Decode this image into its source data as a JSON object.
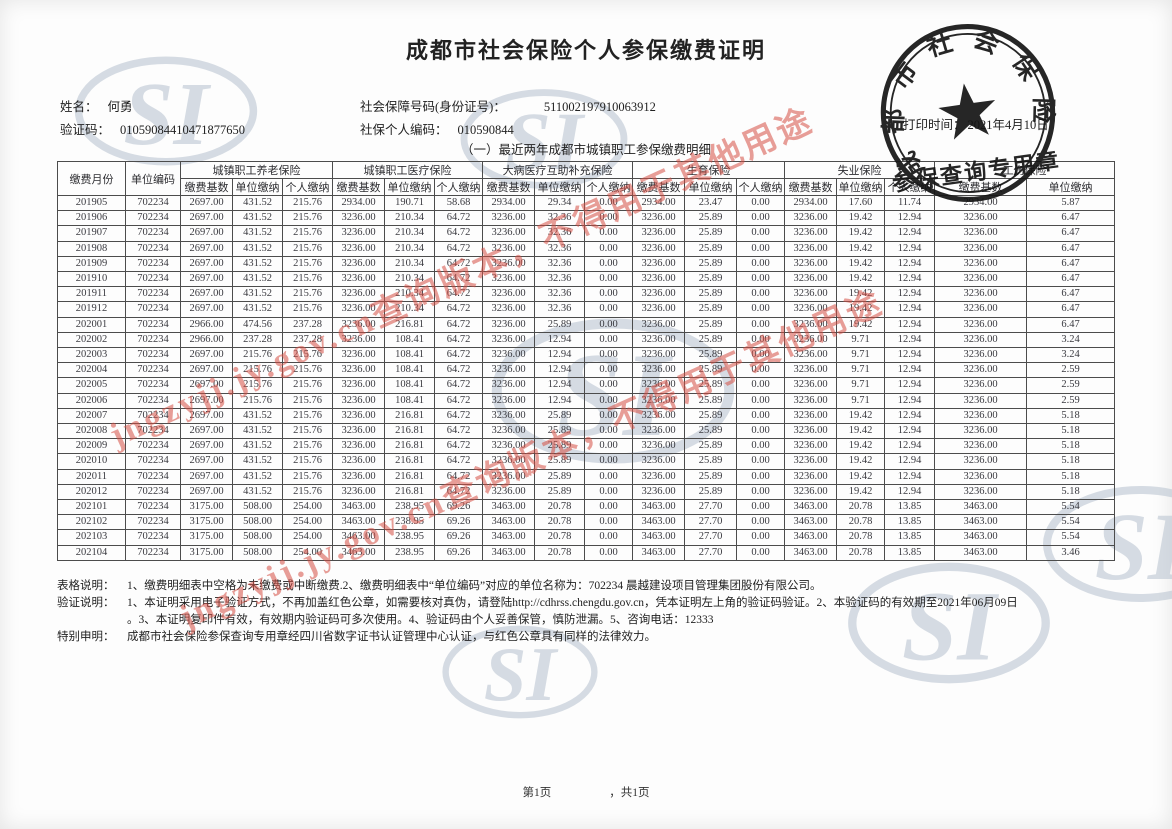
{
  "colors": {
    "watermark_red": "rgba(214,78,68,0.55)",
    "logo_gray": "#bcc6d2",
    "stamp_ink": "#141414"
  },
  "title": "成都市社会保险个人参保缴费证明",
  "info": {
    "name_label": "姓名：",
    "name_value": "何勇",
    "ssn_label": "社会保障号码(身份证号)：",
    "ssn_value": "511002197910063912",
    "verify_label": "验证码：",
    "verify_value": "01059084410471877650",
    "personal_code_label": "社保个人编码：",
    "personal_code_value": "010590844",
    "print_time_label": "打印时间：",
    "print_time_value": "2021年4月10日"
  },
  "subtitle": "（一）最近两年成都市城镇职工参保缴费明细",
  "table": {
    "col1": "缴费月份",
    "col2": "单位编码",
    "groups": [
      {
        "label": "城镇职工养老保险",
        "cols": [
          "缴费基数",
          "单位缴纳",
          "个人缴纳"
        ]
      },
      {
        "label": "城镇职工医疗保险",
        "cols": [
          "缴费基数",
          "单位缴纳",
          "个人缴纳"
        ]
      },
      {
        "label": "大病医疗互助补充保险",
        "cols": [
          "缴费基数",
          "单位缴纳",
          "个人缴纳"
        ]
      },
      {
        "label": "生育保险",
        "cols": [
          "缴费基数",
          "单位缴纳",
          "个人缴纳"
        ]
      },
      {
        "label": "失业保险",
        "cols": [
          "缴费基数",
          "单位缴纳",
          "个人缴纳"
        ]
      },
      {
        "label": "工伤保险",
        "cols": [
          "缴费基数",
          "单位缴纳"
        ]
      }
    ],
    "rows": [
      [
        "201905",
        "702234",
        "2697.00",
        "431.52",
        "215.76",
        "2934.00",
        "190.71",
        "58.68",
        "2934.00",
        "29.34",
        "0.00",
        "2934.00",
        "23.47",
        "0.00",
        "2934.00",
        "17.60",
        "11.74",
        "2934.00",
        "5.87"
      ],
      [
        "201906",
        "702234",
        "2697.00",
        "431.52",
        "215.76",
        "3236.00",
        "210.34",
        "64.72",
        "3236.00",
        "32.36",
        "0.00",
        "3236.00",
        "25.89",
        "0.00",
        "3236.00",
        "19.42",
        "12.94",
        "3236.00",
        "6.47"
      ],
      [
        "201907",
        "702234",
        "2697.00",
        "431.52",
        "215.76",
        "3236.00",
        "210.34",
        "64.72",
        "3236.00",
        "32.36",
        "0.00",
        "3236.00",
        "25.89",
        "0.00",
        "3236.00",
        "19.42",
        "12.94",
        "3236.00",
        "6.47"
      ],
      [
        "201908",
        "702234",
        "2697.00",
        "431.52",
        "215.76",
        "3236.00",
        "210.34",
        "64.72",
        "3236.00",
        "32.36",
        "0.00",
        "3236.00",
        "25.89",
        "0.00",
        "3236.00",
        "19.42",
        "12.94",
        "3236.00",
        "6.47"
      ],
      [
        "201909",
        "702234",
        "2697.00",
        "431.52",
        "215.76",
        "3236.00",
        "210.34",
        "64.72",
        "3236.00",
        "32.36",
        "0.00",
        "3236.00",
        "25.89",
        "0.00",
        "3236.00",
        "19.42",
        "12.94",
        "3236.00",
        "6.47"
      ],
      [
        "201910",
        "702234",
        "2697.00",
        "431.52",
        "215.76",
        "3236.00",
        "210.34",
        "64.72",
        "3236.00",
        "32.36",
        "0.00",
        "3236.00",
        "25.89",
        "0.00",
        "3236.00",
        "19.42",
        "12.94",
        "3236.00",
        "6.47"
      ],
      [
        "201911",
        "702234",
        "2697.00",
        "431.52",
        "215.76",
        "3236.00",
        "210.34",
        "64.72",
        "3236.00",
        "32.36",
        "0.00",
        "3236.00",
        "25.89",
        "0.00",
        "3236.00",
        "19.42",
        "12.94",
        "3236.00",
        "6.47"
      ],
      [
        "201912",
        "702234",
        "2697.00",
        "431.52",
        "215.76",
        "3236.00",
        "210.34",
        "64.72",
        "3236.00",
        "32.36",
        "0.00",
        "3236.00",
        "25.89",
        "0.00",
        "3236.00",
        "19.42",
        "12.94",
        "3236.00",
        "6.47"
      ],
      [
        "202001",
        "702234",
        "2966.00",
        "474.56",
        "237.28",
        "3236.00",
        "216.81",
        "64.72",
        "3236.00",
        "25.89",
        "0.00",
        "3236.00",
        "25.89",
        "0.00",
        "3236.00",
        "19.42",
        "12.94",
        "3236.00",
        "6.47"
      ],
      [
        "202002",
        "702234",
        "2966.00",
        "237.28",
        "237.28",
        "3236.00",
        "108.41",
        "64.72",
        "3236.00",
        "12.94",
        "0.00",
        "3236.00",
        "25.89",
        "0.00",
        "3236.00",
        "9.71",
        "12.94",
        "3236.00",
        "3.24"
      ],
      [
        "202003",
        "702234",
        "2697.00",
        "215.76",
        "215.76",
        "3236.00",
        "108.41",
        "64.72",
        "3236.00",
        "12.94",
        "0.00",
        "3236.00",
        "25.89",
        "0.00",
        "3236.00",
        "9.71",
        "12.94",
        "3236.00",
        "3.24"
      ],
      [
        "202004",
        "702234",
        "2697.00",
        "215.76",
        "215.76",
        "3236.00",
        "108.41",
        "64.72",
        "3236.00",
        "12.94",
        "0.00",
        "3236.00",
        "25.89",
        "0.00",
        "3236.00",
        "9.71",
        "12.94",
        "3236.00",
        "2.59"
      ],
      [
        "202005",
        "702234",
        "2697.00",
        "215.76",
        "215.76",
        "3236.00",
        "108.41",
        "64.72",
        "3236.00",
        "12.94",
        "0.00",
        "3236.00",
        "25.89",
        "0.00",
        "3236.00",
        "9.71",
        "12.94",
        "3236.00",
        "2.59"
      ],
      [
        "202006",
        "702234",
        "2697.00",
        "215.76",
        "215.76",
        "3236.00",
        "108.41",
        "64.72",
        "3236.00",
        "12.94",
        "0.00",
        "3236.00",
        "25.89",
        "0.00",
        "3236.00",
        "9.71",
        "12.94",
        "3236.00",
        "2.59"
      ],
      [
        "202007",
        "702234",
        "2697.00",
        "431.52",
        "215.76",
        "3236.00",
        "216.81",
        "64.72",
        "3236.00",
        "25.89",
        "0.00",
        "3236.00",
        "25.89",
        "0.00",
        "3236.00",
        "19.42",
        "12.94",
        "3236.00",
        "5.18"
      ],
      [
        "202008",
        "702234",
        "2697.00",
        "431.52",
        "215.76",
        "3236.00",
        "216.81",
        "64.72",
        "3236.00",
        "25.89",
        "0.00",
        "3236.00",
        "25.89",
        "0.00",
        "3236.00",
        "19.42",
        "12.94",
        "3236.00",
        "5.18"
      ],
      [
        "202009",
        "702234",
        "2697.00",
        "431.52",
        "215.76",
        "3236.00",
        "216.81",
        "64.72",
        "3236.00",
        "25.89",
        "0.00",
        "3236.00",
        "25.89",
        "0.00",
        "3236.00",
        "19.42",
        "12.94",
        "3236.00",
        "5.18"
      ],
      [
        "202010",
        "702234",
        "2697.00",
        "431.52",
        "215.76",
        "3236.00",
        "216.81",
        "64.72",
        "3236.00",
        "25.89",
        "0.00",
        "3236.00",
        "25.89",
        "0.00",
        "3236.00",
        "19.42",
        "12.94",
        "3236.00",
        "5.18"
      ],
      [
        "202011",
        "702234",
        "2697.00",
        "431.52",
        "215.76",
        "3236.00",
        "216.81",
        "64.72",
        "3236.00",
        "25.89",
        "0.00",
        "3236.00",
        "25.89",
        "0.00",
        "3236.00",
        "19.42",
        "12.94",
        "3236.00",
        "5.18"
      ],
      [
        "202012",
        "702234",
        "2697.00",
        "431.52",
        "215.76",
        "3236.00",
        "216.81",
        "64.72",
        "3236.00",
        "25.89",
        "0.00",
        "3236.00",
        "25.89",
        "0.00",
        "3236.00",
        "19.42",
        "12.94",
        "3236.00",
        "5.18"
      ],
      [
        "202101",
        "702234",
        "3175.00",
        "508.00",
        "254.00",
        "3463.00",
        "238.95",
        "69.26",
        "3463.00",
        "20.78",
        "0.00",
        "3463.00",
        "27.70",
        "0.00",
        "3463.00",
        "20.78",
        "13.85",
        "3463.00",
        "5.54"
      ],
      [
        "202102",
        "702234",
        "3175.00",
        "508.00",
        "254.00",
        "3463.00",
        "238.95",
        "69.26",
        "3463.00",
        "20.78",
        "0.00",
        "3463.00",
        "27.70",
        "0.00",
        "3463.00",
        "20.78",
        "13.85",
        "3463.00",
        "5.54"
      ],
      [
        "202103",
        "702234",
        "3175.00",
        "508.00",
        "254.00",
        "3463.00",
        "238.95",
        "69.26",
        "3463.00",
        "20.78",
        "0.00",
        "3463.00",
        "27.70",
        "0.00",
        "3463.00",
        "20.78",
        "13.85",
        "3463.00",
        "5.54"
      ],
      [
        "202104",
        "702234",
        "3175.00",
        "508.00",
        "254.00",
        "3463.00",
        "238.95",
        "69.26",
        "3463.00",
        "20.78",
        "0.00",
        "3463.00",
        "27.70",
        "0.00",
        "3463.00",
        "20.78",
        "13.85",
        "3463.00",
        "3.46"
      ]
    ]
  },
  "notes": [
    {
      "label": "表格说明：",
      "text": "1、缴费明细表中空格为未缴费或中断缴费.2、缴费明细表中“单位编码”对应的单位名称为：702234 晨越建设项目管理集团股份有限公司。"
    },
    {
      "label": "验证说明：",
      "text": "1、本证明采用电子验证方式，不再加盖红色公章，如需要核对真伪，请登陆http://cdhrss.chengdu.gov.cn，凭本证明左上角的验证码验证。2、本验证码的有效期至2021年06月09日"
    },
    {
      "label": "",
      "text": "。3、本证明复印件有效，有效期内验证码可多次使用。4、验证码由个人妥善保管，慎防泄漏。5、咨询电话：12333"
    },
    {
      "label": "特别申明：",
      "text": "成都市社会保险参保查询专用章经四川省数字证书认证管理中心认证，与红色公章具有同样的法律效力。"
    }
  ],
  "pagination": {
    "page": "第1页",
    "total": "，共1页"
  },
  "stamp": {
    "ring_text": "成都市社会保险",
    "bottom_text": "参保查询专用章"
  },
  "watermark": {
    "text": "jngzyjj.jy.gov.cn查询版本，不得用于其他用途"
  },
  "logo": {
    "text": "SI"
  }
}
